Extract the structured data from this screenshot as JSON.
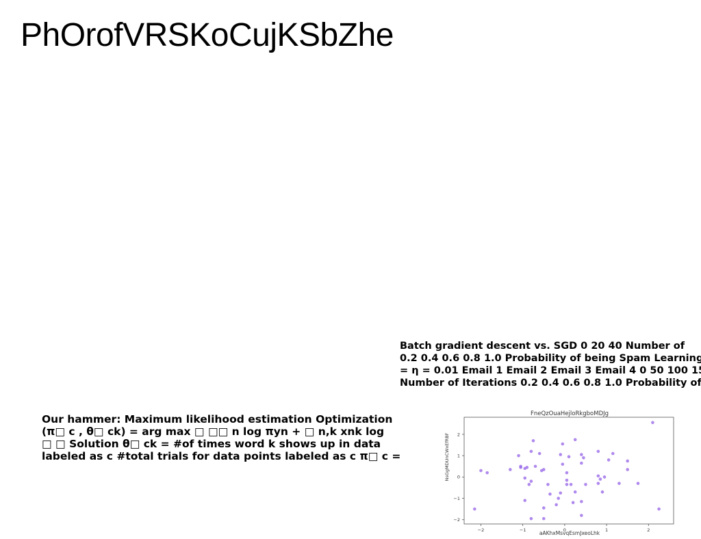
{
  "slide": {
    "title": "PhOrofVRSKoCujKSbZhe"
  },
  "caption": {
    "lines": [
      "Batch gradient descent vs. SGD 0 20 40 Number of",
      "0.2 0.4 0.6 0.8 1.0 Probability of being Spam Learning",
      "= η = 0.01 Email 1 Email 2 Email 3 Email 4 0 50 100 150",
      "Number of Iterations 0.2 0.4 0.6 0.8 1.0 Probability of"
    ]
  },
  "body": {
    "lines": [
      "Our hammer: Maximum likelihood estimation Optimization",
      "(π□ c , θ□ ck) = arg max □ □□ n log πyn + □ n,k xnk log",
      "□ □ Solution θ□ ck = #of times word k shows up in data",
      "labeled as c #total trials for data points labeled as c π□ c ="
    ]
  },
  "chart_data": {
    "type": "scatter",
    "title": "FneQzOuaHejloRkgboMDJg",
    "xlabel": "aAKhxMsvqEsmJxeoLhk",
    "ylabel": "NsGgMDUnCWxEfRBF",
    "xlim": [
      -2.4,
      2.6
    ],
    "ylim": [
      -2.2,
      2.8
    ],
    "xticks": [
      -2,
      -1,
      0,
      1,
      2
    ],
    "yticks": [
      -2,
      -1,
      0,
      1,
      2
    ],
    "grid": false,
    "color": "#9b6be8",
    "points": [
      [
        -2.15,
        -1.5
      ],
      [
        -2.0,
        0.3
      ],
      [
        -1.85,
        0.2
      ],
      [
        -1.3,
        0.35
      ],
      [
        -1.1,
        1.0
      ],
      [
        -1.05,
        0.5
      ],
      [
        -1.05,
        0.45
      ],
      [
        -0.95,
        0.4
      ],
      [
        -0.95,
        -0.05
      ],
      [
        -0.95,
        -1.1
      ],
      [
        -0.9,
        0.45
      ],
      [
        -0.85,
        -0.35
      ],
      [
        -0.8,
        -0.2
      ],
      [
        -0.8,
        1.2
      ],
      [
        -0.8,
        -1.95
      ],
      [
        -0.75,
        1.7
      ],
      [
        -0.7,
        0.5
      ],
      [
        -0.6,
        1.1
      ],
      [
        -0.55,
        0.3
      ],
      [
        -0.5,
        0.35
      ],
      [
        -0.5,
        -1.45
      ],
      [
        -0.5,
        -1.95
      ],
      [
        -0.4,
        -0.35
      ],
      [
        -0.35,
        -0.8
      ],
      [
        -0.2,
        -1.3
      ],
      [
        -0.15,
        -1.0
      ],
      [
        -0.1,
        -0.75
      ],
      [
        -0.1,
        1.05
      ],
      [
        -0.05,
        1.55
      ],
      [
        -0.05,
        0.6
      ],
      [
        0.05,
        0.2
      ],
      [
        0.05,
        -0.15
      ],
      [
        0.05,
        -0.35
      ],
      [
        0.1,
        0.95
      ],
      [
        0.15,
        -0.35
      ],
      [
        0.2,
        -1.2
      ],
      [
        0.25,
        -0.7
      ],
      [
        0.25,
        1.75
      ],
      [
        0.4,
        1.05
      ],
      [
        0.4,
        0.65
      ],
      [
        0.4,
        -1.15
      ],
      [
        0.45,
        0.9
      ],
      [
        0.4,
        -1.8
      ],
      [
        0.5,
        -0.35
      ],
      [
        0.8,
        1.2
      ],
      [
        0.8,
        0.05
      ],
      [
        0.8,
        -0.3
      ],
      [
        0.85,
        -0.1
      ],
      [
        0.9,
        -0.7
      ],
      [
        0.95,
        0.0
      ],
      [
        1.05,
        0.8
      ],
      [
        1.15,
        1.1
      ],
      [
        1.3,
        -0.3
      ],
      [
        1.5,
        0.75
      ],
      [
        1.5,
        0.35
      ],
      [
        1.75,
        -0.3
      ],
      [
        2.1,
        2.55
      ],
      [
        2.25,
        -1.5
      ]
    ]
  }
}
